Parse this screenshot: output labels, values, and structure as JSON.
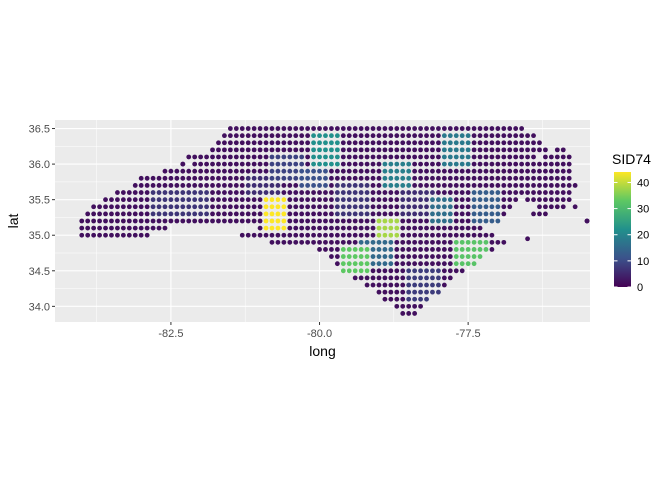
{
  "chart_data": {
    "type": "scatter",
    "xlabel": "long",
    "ylabel": "lat",
    "xlim": [
      -84.45,
      -75.45
    ],
    "ylim": [
      33.78,
      36.62
    ],
    "x_ticks": [
      -82.5,
      -80.0,
      -77.5
    ],
    "x_tick_labels": [
      "-82.5",
      "-80.0",
      "-77.5"
    ],
    "y_ticks": [
      34.0,
      34.5,
      35.0,
      35.5,
      36.0,
      36.5
    ],
    "y_tick_labels": [
      "34.0",
      "34.5",
      "35.0",
      "35.5",
      "36.0",
      "36.5"
    ],
    "grid": true,
    "grid_step": 0.1,
    "legend": {
      "title": "SID74",
      "position": "right",
      "range": [
        0,
        44
      ],
      "breaks": [
        0,
        10,
        20,
        30,
        40
      ],
      "break_labels": [
        "0",
        "10",
        "20",
        "30",
        "40"
      ]
    },
    "colormap": [
      "#440154",
      "#3B528B",
      "#21908C",
      "#5DC863",
      "#FDE725"
    ],
    "background_color": "#EBEBEB",
    "grid_color": "#FFFFFF",
    "series": [
      {
        "value_field": "SID74",
        "rows": [
          {
            "y": 36.5,
            "segments": [
              [
                -81.5,
                -76.6
              ]
            ]
          },
          {
            "y": 36.4,
            "segments": [
              [
                -81.6,
                -76.4
              ]
            ]
          },
          {
            "y": 36.3,
            "segments": [
              [
                -81.7,
                -76.3
              ]
            ]
          },
          {
            "y": 36.2,
            "segments": [
              [
                -81.8,
                -76.2
              ],
              [
                -76.0,
                -75.9
              ]
            ]
          },
          {
            "y": 36.1,
            "segments": [
              [
                -82.2,
                -76.4
              ],
              [
                -76.2,
                -75.8
              ]
            ]
          },
          {
            "y": 36.0,
            "segments": [
              [
                -82.3,
                -82.3
              ],
              [
                -82.1,
                -75.8
              ]
            ]
          },
          {
            "y": 35.9,
            "segments": [
              [
                -82.6,
                -75.8
              ]
            ]
          },
          {
            "y": 35.8,
            "segments": [
              [
                -83.0,
                -75.8
              ]
            ]
          },
          {
            "y": 35.7,
            "segments": [
              [
                -83.1,
                -75.8
              ]
            ]
          },
          {
            "y": 35.6,
            "segments": [
              [
                -83.4,
                -75.8
              ]
            ]
          },
          {
            "y": 35.5,
            "segments": [
              [
                -83.6,
                -76.7
              ],
              [
                -76.5,
                -75.8
              ]
            ]
          },
          {
            "y": 35.4,
            "segments": [
              [
                -83.8,
                -76.8
              ],
              [
                -76.3,
                -75.9
              ]
            ]
          },
          {
            "y": 35.3,
            "segments": [
              [
                -83.9,
                -76.9
              ],
              [
                -76.4,
                -76.2
              ]
            ]
          },
          {
            "y": 35.2,
            "segments": [
              [
                -84.0,
                -77.0
              ],
              [
                -75.5,
                -75.5
              ]
            ]
          },
          {
            "y": 35.1,
            "segments": [
              [
                -84.0,
                -82.6
              ],
              [
                -81.0,
                -77.3
              ]
            ]
          },
          {
            "y": 35.0,
            "segments": [
              [
                -84.0,
                -82.9
              ],
              [
                -81.3,
                -77.1
              ]
            ]
          },
          {
            "y": 34.9,
            "segments": [
              [
                -80.8,
                -76.9
              ]
            ]
          },
          {
            "y": 34.8,
            "segments": [
              [
                -80.0,
                -77.1
              ]
            ]
          },
          {
            "y": 34.7,
            "segments": [
              [
                -79.8,
                -77.3
              ]
            ]
          },
          {
            "y": 34.6,
            "segments": [
              [
                -79.7,
                -77.4
              ]
            ]
          },
          {
            "y": 34.5,
            "segments": [
              [
                -79.6,
                -77.6
              ]
            ]
          },
          {
            "y": 34.4,
            "segments": [
              [
                -79.4,
                -77.8
              ]
            ]
          },
          {
            "y": 34.3,
            "segments": [
              [
                -79.2,
                -77.9
              ]
            ]
          },
          {
            "y": 34.2,
            "segments": [
              [
                -79.0,
                -78.0
              ]
            ]
          },
          {
            "y": 34.1,
            "segments": [
              [
                -78.9,
                -78.2
              ]
            ]
          },
          {
            "y": 34.0,
            "segments": [
              [
                -78.7,
                -78.3
              ]
            ]
          },
          {
            "y": 33.9,
            "segments": [
              [
                -78.6,
                -78.4
              ]
            ]
          }
        ],
        "isolated_points": [
          {
            "x": -82.3,
            "y": 36.0
          },
          {
            "x": -76.0,
            "y": 36.0
          },
          {
            "x": -75.7,
            "y": 35.7
          },
          {
            "x": -75.7,
            "y": 35.4
          },
          {
            "x": -75.5,
            "y": 35.2
          },
          {
            "x": -76.5,
            "y": 34.95
          }
        ],
        "regions": [
          {
            "x": [
              -80.95,
              -80.55
            ],
            "y": [
              35.05,
              35.55
            ],
            "value": 44
          },
          {
            "x": [
              -79.05,
              -78.65
            ],
            "y": [
              34.95,
              35.25
            ],
            "value": 38
          },
          {
            "x": [
              -79.65,
              -79.15
            ],
            "y": [
              34.45,
              34.85
            ],
            "value": 33
          },
          {
            "x": [
              -77.75,
              -77.15
            ],
            "y": [
              34.55,
              34.95
            ],
            "value": 32
          },
          {
            "x": [
              -80.15,
              -79.65
            ],
            "y": [
              35.95,
              36.45
            ],
            "value": 22
          },
          {
            "x": [
              -78.95,
              -78.45
            ],
            "y": [
              35.65,
              36.05
            ],
            "value": 19
          },
          {
            "x": [
              -77.95,
              -77.45
            ],
            "y": [
              35.95,
              36.45
            ],
            "value": 18
          },
          {
            "x": [
              -79.35,
              -78.75
            ],
            "y": [
              34.55,
              34.95
            ],
            "value": 15
          },
          {
            "x": [
              -78.15,
              -77.75
            ],
            "y": [
              35.15,
              35.55
            ],
            "value": 16
          },
          {
            "x": [
              -77.45,
              -76.95
            ],
            "y": [
              35.15,
              35.65
            ],
            "value": 13
          },
          {
            "x": [
              -80.35,
              -79.85
            ],
            "y": [
              35.65,
              35.95
            ],
            "value": 11
          },
          {
            "x": [
              -80.85,
              -80.25
            ],
            "y": [
              35.75,
              36.15
            ],
            "value": 9
          },
          {
            "x": [
              -82.85,
              -81.85
            ],
            "y": [
              35.25,
              35.65
            ],
            "value": 7
          },
          {
            "x": [
              -78.55,
              -77.95
            ],
            "y": [
              34.05,
              34.55
            ],
            "value": 8
          },
          {
            "x": [
              -79.75,
              -79.15
            ],
            "y": [
              35.25,
              35.75
            ],
            "value": 7
          },
          {
            "x": [
              -81.25,
              -80.65
            ],
            "y": [
              35.55,
              35.85
            ],
            "value": 6
          },
          {
            "x": [
              -78.65,
              -78.05
            ],
            "y": [
              35.25,
              35.65
            ],
            "value": 6
          }
        ],
        "default_value": 2
      }
    ]
  }
}
